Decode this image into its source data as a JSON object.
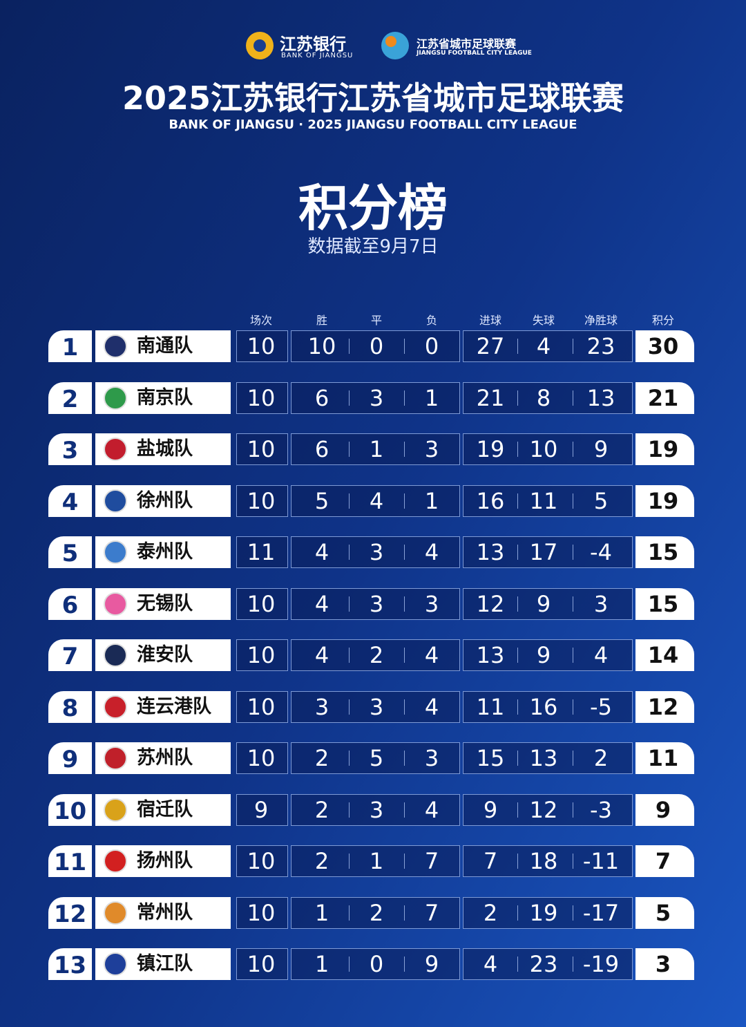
{
  "header": {
    "bank_name": "江苏银行",
    "bank_name_en": "BANK OF JIANGSU",
    "league_name": "江苏省城市足球联赛",
    "league_name_en": "JIANGSU FOOTBALL CITY LEAGUE",
    "title": "2025江苏银行江苏省城市足球联赛",
    "subtitle": "BANK OF JIANGSU · 2025 JIANGSU FOOTBALL CITY LEAGUE",
    "heading": "积分榜",
    "date_note": "数据截至9月7日"
  },
  "table": {
    "columns": [
      "场次",
      "胜",
      "平",
      "负",
      "进球",
      "失球",
      "净胜球",
      "积分"
    ],
    "rows": [
      [
        1,
        "南通队",
        10,
        10,
        0,
        0,
        27,
        4,
        23,
        30
      ],
      [
        2,
        "南京队",
        10,
        6,
        3,
        1,
        21,
        8,
        13,
        21
      ],
      [
        3,
        "盐城队",
        10,
        6,
        1,
        3,
        19,
        10,
        9,
        19
      ],
      [
        4,
        "徐州队",
        10,
        5,
        4,
        1,
        16,
        11,
        5,
        19
      ],
      [
        5,
        "泰州队",
        11,
        4,
        3,
        4,
        13,
        17,
        -4,
        15
      ],
      [
        6,
        "无锡队",
        10,
        4,
        3,
        3,
        12,
        9,
        3,
        15
      ],
      [
        7,
        "淮安队",
        10,
        4,
        2,
        4,
        13,
        9,
        4,
        14
      ],
      [
        8,
        "连云港队",
        10,
        3,
        3,
        4,
        11,
        16,
        -5,
        12
      ],
      [
        9,
        "苏州队",
        10,
        2,
        5,
        3,
        15,
        13,
        2,
        11
      ],
      [
        10,
        "宿迁队",
        9,
        2,
        3,
        4,
        9,
        12,
        -3,
        9
      ],
      [
        11,
        "扬州队",
        10,
        2,
        1,
        7,
        7,
        18,
        -11,
        7
      ],
      [
        12,
        "常州队",
        10,
        1,
        2,
        7,
        2,
        19,
        -17,
        5
      ],
      [
        13,
        "镇江队",
        10,
        1,
        0,
        9,
        4,
        23,
        -19,
        3
      ]
    ]
  }
}
